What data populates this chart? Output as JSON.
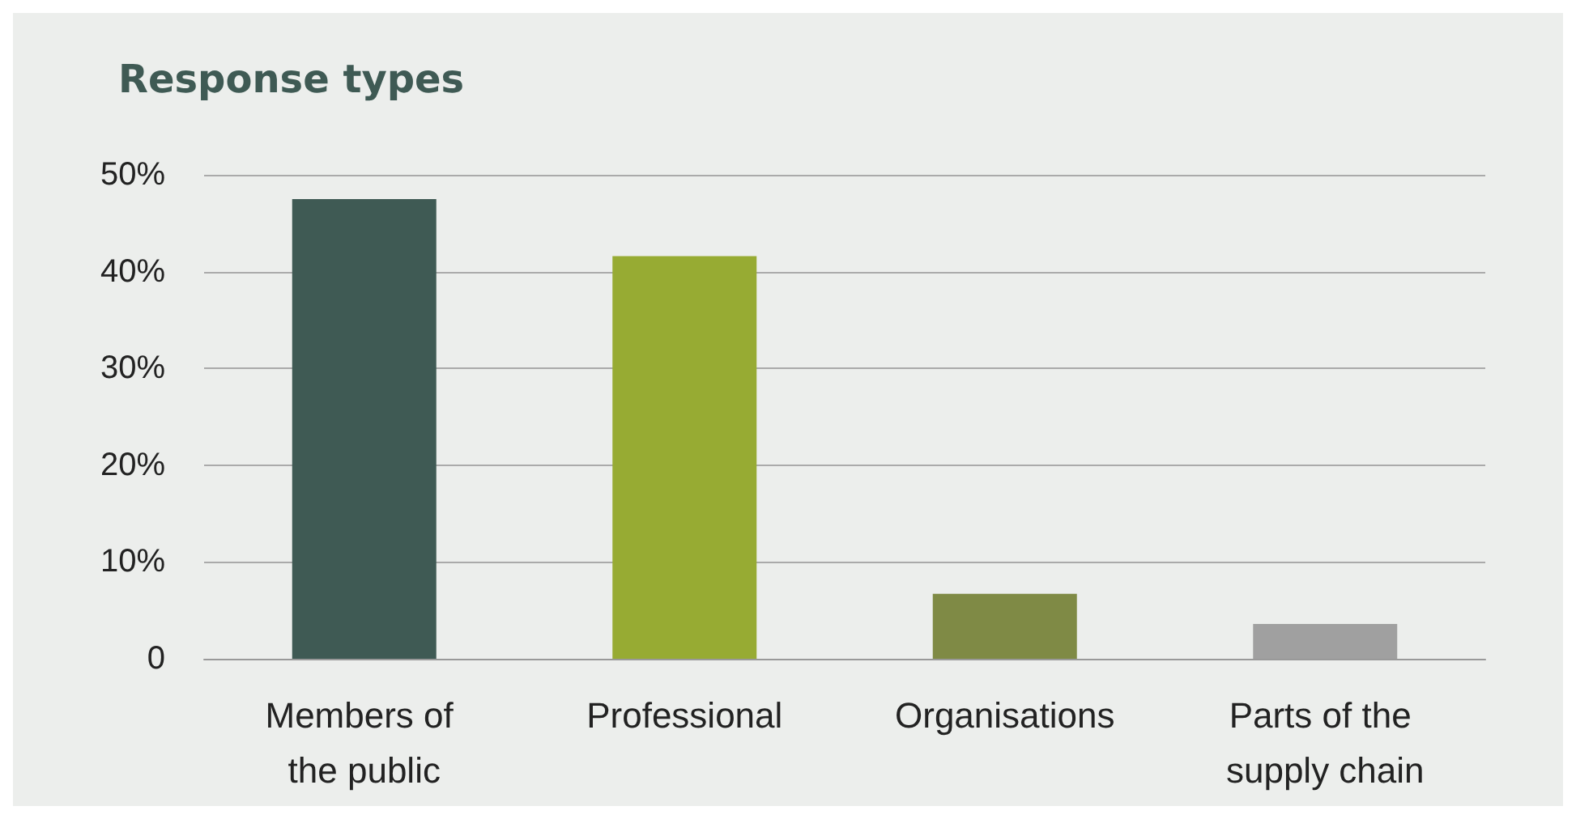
{
  "chart_data": {
    "type": "bar",
    "title": "Response types",
    "categories": [
      "Members of the public",
      "Professional",
      "Organisations",
      "Parts of the supply chain"
    ],
    "values": [
      47.5,
      41.6,
      6.7,
      3.6
    ],
    "colors": [
      "#3f5a54",
      "#97ab33",
      "#7f8a45",
      "#a0a0a0"
    ],
    "ylim": [
      0,
      50
    ],
    "yticks": [
      0,
      {
        "value": 10,
        "label": "10%"
      },
      {
        "value": 20,
        "label": "20%"
      },
      {
        "value": 30,
        "label": "30%"
      },
      {
        "value": 40,
        "label": "40%"
      },
      {
        "value": 50,
        "label": "50%"
      }
    ],
    "grid": "y"
  }
}
